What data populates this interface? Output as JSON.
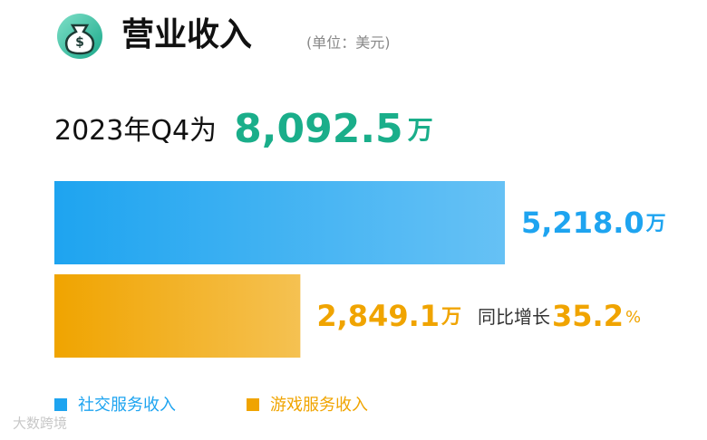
{
  "chart_data": {
    "type": "bar",
    "orientation": "horizontal",
    "title": "营业收入",
    "subtitle": "(单位：美元)",
    "headline": {
      "prefix": "2023年Q4为",
      "total": 8092.5,
      "total_label": "8,092.5",
      "unit": "万",
      "color": "#1aae8a"
    },
    "categories": [
      "社交服务收入",
      "游戏服务收入"
    ],
    "values": [
      5218.0,
      2849.1
    ],
    "value_labels": [
      "5,218.0",
      "2,849.1"
    ],
    "unit": "万",
    "colors": [
      "#1ea4f0",
      "#f0a400"
    ],
    "annotation": {
      "label": "同比增长",
      "value": 35.2,
      "unit": "%"
    },
    "watermark": "大数跨境"
  }
}
